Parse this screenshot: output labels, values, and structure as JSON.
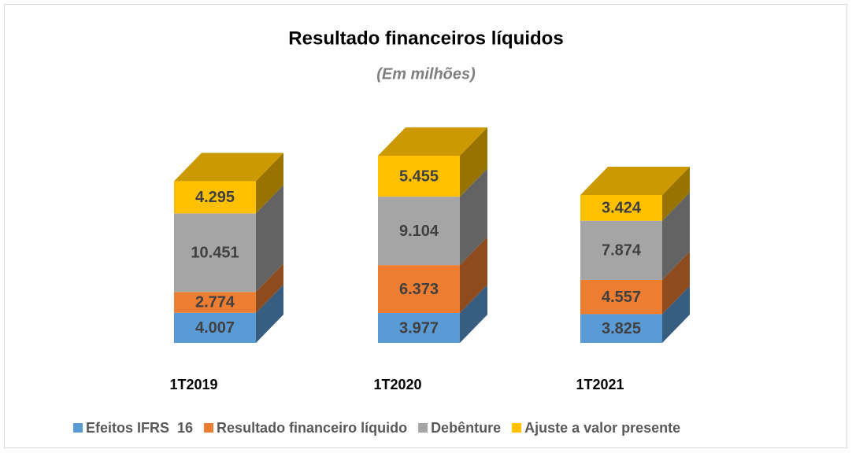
{
  "chart_data": {
    "type": "bar3d_stacked",
    "title": "Resultado financeiros líquidos",
    "subtitle": "(Em milhões)",
    "categories": [
      "1T2019",
      "1T2020",
      "1T2021"
    ],
    "series": [
      {
        "name": "Efeitos IFRS  16",
        "color": "#5b9bd5",
        "values": [
          4007,
          3977,
          3825
        ],
        "value_labels": [
          "4.007",
          "3.977",
          "3.825"
        ]
      },
      {
        "name": "Resultado financeiro líquido",
        "color": "#ed7d31",
        "values": [
          2774,
          6373,
          4557
        ],
        "value_labels": [
          "2.774",
          "6.373",
          "4.557"
        ]
      },
      {
        "name": "Debênture",
        "color": "#a5a5a5",
        "values": [
          10451,
          9104,
          7874
        ],
        "value_labels": [
          "10.451",
          "9.104",
          "7.874"
        ]
      },
      {
        "name": "Ajuste a valor presente",
        "color": "#ffc000",
        "values": [
          4295,
          5455,
          3424
        ],
        "value_labels": [
          "4.295",
          "5.455",
          "3.424"
        ]
      }
    ],
    "legend": "bottom"
  }
}
